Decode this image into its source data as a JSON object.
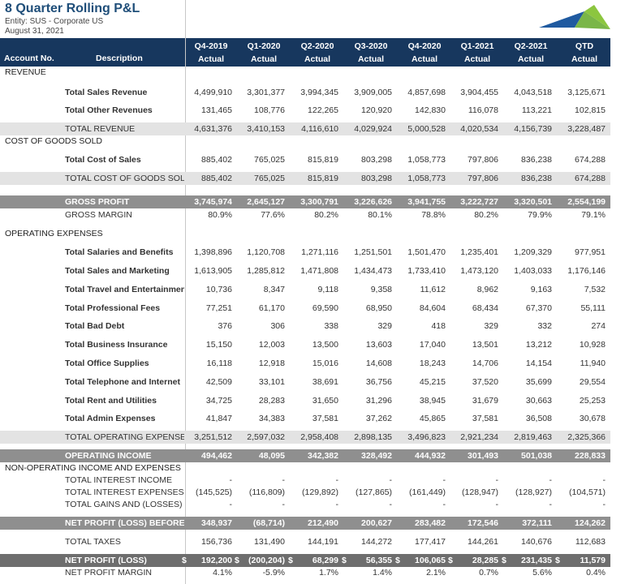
{
  "header": {
    "title": "8 Quarter Rolling P&L",
    "entity": "Entity: SUS - Corporate US",
    "date": "August 31, 2021"
  },
  "table": {
    "account_header": "Account No.",
    "description_header": "Description",
    "columns": [
      {
        "period": "Q4-2019",
        "basis": "Actual"
      },
      {
        "period": "Q1-2020",
        "basis": "Actual"
      },
      {
        "period": "Q2-2020",
        "basis": "Actual"
      },
      {
        "period": "Q3-2020",
        "basis": "Actual"
      },
      {
        "period": "Q4-2020",
        "basis": "Actual"
      },
      {
        "period": "Q1-2021",
        "basis": "Actual"
      },
      {
        "period": "Q2-2021",
        "basis": "Actual"
      },
      {
        "period": "QTD",
        "basis": "Actual"
      }
    ],
    "rows": [
      {
        "label": "REVENUE"
      },
      {
        "label": "Total Sales Revenue",
        "values": [
          "4,499,910",
          "3,301,377",
          "3,994,345",
          "3,909,005",
          "4,857,698",
          "3,904,455",
          "4,043,518",
          "3,125,671"
        ]
      },
      {
        "label": "Total Other Revenues",
        "values": [
          "131,465",
          "108,776",
          "122,265",
          "120,920",
          "142,830",
          "116,078",
          "113,221",
          "102,815"
        ]
      },
      {
        "label": "TOTAL REVENUE",
        "values": [
          "4,631,376",
          "3,410,153",
          "4,116,610",
          "4,029,924",
          "5,000,528",
          "4,020,534",
          "4,156,739",
          "3,228,487"
        ]
      },
      {
        "label": "COST OF GOODS SOLD"
      },
      {
        "label": "Total Cost of Sales",
        "values": [
          "885,402",
          "765,025",
          "815,819",
          "803,298",
          "1,058,773",
          "797,806",
          "836,238",
          "674,288"
        ]
      },
      {
        "label": "TOTAL COST OF GOODS SOLD",
        "values": [
          "885,402",
          "765,025",
          "815,819",
          "803,298",
          "1,058,773",
          "797,806",
          "836,238",
          "674,288"
        ]
      },
      {
        "label": "GROSS PROFIT",
        "values": [
          "3,745,974",
          "2,645,127",
          "3,300,791",
          "3,226,626",
          "3,941,755",
          "3,222,727",
          "3,320,501",
          "2,554,199"
        ]
      },
      {
        "label": "GROSS MARGIN",
        "values": [
          "80.9%",
          "77.6%",
          "80.2%",
          "80.1%",
          "78.8%",
          "80.2%",
          "79.9%",
          "79.1%"
        ]
      },
      {
        "label": "OPERATING EXPENSES"
      },
      {
        "label": "Total Salaries and Benefits",
        "values": [
          "1,398,896",
          "1,120,708",
          "1,271,116",
          "1,251,501",
          "1,501,470",
          "1,235,401",
          "1,209,329",
          "977,951"
        ]
      },
      {
        "label": "Total Sales and Marketing",
        "values": [
          "1,613,905",
          "1,285,812",
          "1,471,808",
          "1,434,473",
          "1,733,410",
          "1,473,120",
          "1,403,033",
          "1,176,146"
        ]
      },
      {
        "label": "Total Travel and Entertainment",
        "values": [
          "10,736",
          "8,347",
          "9,118",
          "9,358",
          "11,612",
          "8,962",
          "9,163",
          "7,532"
        ]
      },
      {
        "label": "Total Professional Fees",
        "values": [
          "77,251",
          "61,170",
          "69,590",
          "68,950",
          "84,604",
          "68,434",
          "67,370",
          "55,111"
        ]
      },
      {
        "label": "Total Bad Debt",
        "values": [
          "376",
          "306",
          "338",
          "329",
          "418",
          "329",
          "332",
          "274"
        ]
      },
      {
        "label": "Total Business Insurance",
        "values": [
          "15,150",
          "12,003",
          "13,500",
          "13,603",
          "17,040",
          "13,501",
          "13,212",
          "10,928"
        ]
      },
      {
        "label": "Total Office Supplies",
        "values": [
          "16,118",
          "12,918",
          "15,016",
          "14,608",
          "18,243",
          "14,706",
          "14,154",
          "11,940"
        ]
      },
      {
        "label": "Total Telephone and Internet",
        "values": [
          "42,509",
          "33,101",
          "38,691",
          "36,756",
          "45,215",
          "37,520",
          "35,699",
          "29,554"
        ]
      },
      {
        "label": "Total Rent and Utilities",
        "values": [
          "34,725",
          "28,283",
          "31,650",
          "31,296",
          "38,945",
          "31,679",
          "30,663",
          "25,253"
        ]
      },
      {
        "label": "Total Admin Expenses",
        "values": [
          "41,847",
          "34,383",
          "37,581",
          "37,262",
          "45,865",
          "37,581",
          "36,508",
          "30,678"
        ]
      },
      {
        "label": "TOTAL OPERATING EXPENSES",
        "values": [
          "3,251,512",
          "2,597,032",
          "2,958,408",
          "2,898,135",
          "3,496,823",
          "2,921,234",
          "2,819,463",
          "2,325,366"
        ]
      },
      {
        "label": "OPERATING INCOME",
        "values": [
          "494,462",
          "48,095",
          "342,382",
          "328,492",
          "444,932",
          "301,493",
          "501,038",
          "228,833"
        ]
      },
      {
        "label": "NON-OPERATING INCOME AND EXPENSES"
      },
      {
        "label": "TOTAL INTEREST INCOME",
        "values": [
          "-",
          "-",
          "-",
          "-",
          "-",
          "-",
          "-",
          "-"
        ]
      },
      {
        "label": "TOTAL INTEREST EXPENSES",
        "values": [
          "(145,525)",
          "(116,809)",
          "(129,892)",
          "(127,865)",
          "(161,449)",
          "(128,947)",
          "(128,927)",
          "(104,571)"
        ]
      },
      {
        "label": "TOTAL GAINS AND (LOSSES)",
        "values": [
          "-",
          "-",
          "-",
          "-",
          "-",
          "-",
          "-",
          "-"
        ]
      },
      {
        "label": "NET PROFIT (LOSS) BEFORE TA",
        "values": [
          "348,937",
          "(68,714)",
          "212,490",
          "200,627",
          "283,482",
          "172,546",
          "372,111",
          "124,262"
        ]
      },
      {
        "label": "TOTAL TAXES",
        "values": [
          "156,736",
          "131,490",
          "144,191",
          "144,272",
          "177,417",
          "144,261",
          "140,676",
          "112,683"
        ]
      },
      {
        "label": "NET PROFIT (LOSS)",
        "currency": "$",
        "values": [
          "192,200",
          "(200,204)",
          "68,299",
          "56,355",
          "106,065",
          "28,285",
          "231,435",
          "11,579"
        ]
      },
      {
        "label": "NET PROFIT MARGIN",
        "values": [
          "4.1%",
          "-5.9%",
          "1.7%",
          "1.4%",
          "2.1%",
          "0.7%",
          "5.6%",
          "0.4%"
        ]
      }
    ]
  }
}
